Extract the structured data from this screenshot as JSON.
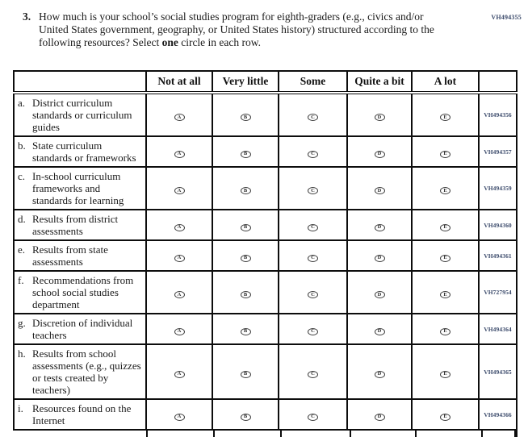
{
  "question": {
    "number": "3.",
    "text_before_bold": "How much is your school’s social studies program for eighth-graders (e.g., civics and/or United States government, geography, or United States history) structured according to the following resources? Select ",
    "bold_word": "one",
    "text_after_bold": " circle in each row.",
    "code": "VH494355"
  },
  "table": {
    "columns": [
      "Not at all",
      "Very little",
      "Some",
      "Quite a bit",
      "A lot"
    ],
    "options": [
      "A",
      "B",
      "C",
      "D",
      "E"
    ],
    "rows": [
      {
        "letter": "a.",
        "label": "District curriculum standards or curriculum guides",
        "code": "VH494356"
      },
      {
        "letter": "b.",
        "label": "State curriculum standards or frameworks",
        "code": "VH494357"
      },
      {
        "letter": "c.",
        "label": "In-school curriculum frameworks and standards for learning",
        "code": "VH494359"
      },
      {
        "letter": "d.",
        "label": "Results from district assessments",
        "code": "VH494360"
      },
      {
        "letter": "e.",
        "label": "Results from state assessments",
        "code": "VH494361"
      },
      {
        "letter": "f.",
        "label": "Recommendations from school social studies department",
        "code": "VH727954"
      },
      {
        "letter": "g.",
        "label": "Discretion of individual teachers",
        "code": "VH494364"
      },
      {
        "letter": "h.",
        "label": "Results from school assessments (e.g., quizzes or tests created by teachers)",
        "code": "VH494365"
      },
      {
        "letter": "i.",
        "label": "Resources found on the Internet",
        "code": "VH494366"
      }
    ]
  },
  "colors": {
    "code_text": "#3b4a6b",
    "border": "#0d0d0d",
    "text": "#1a1a1a"
  }
}
